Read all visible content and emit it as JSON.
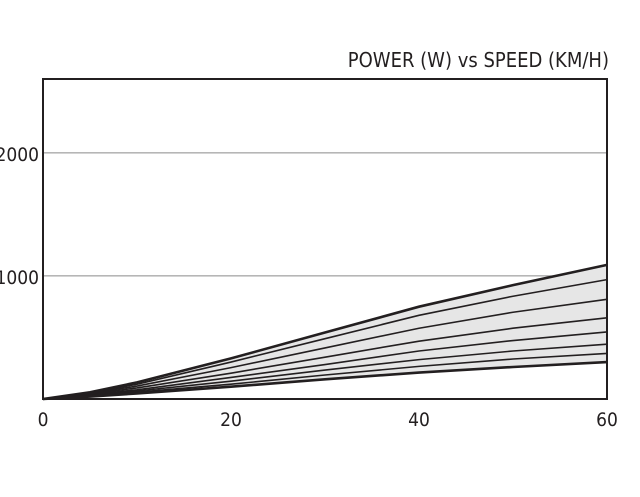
{
  "chart_data": {
    "type": "line",
    "title": "POWER (W) vs SPEED (KM/H)",
    "xlabel": "",
    "ylabel": "",
    "xlim": [
      0,
      60
    ],
    "ylim": [
      0,
      2600
    ],
    "xticks": [
      "0",
      "20",
      "40",
      "60"
    ],
    "yticks": [
      "1000",
      "2000"
    ],
    "grid": "horizontal",
    "fill_between_outer_series": true,
    "x": [
      0,
      5,
      10,
      20,
      30,
      40,
      50,
      60
    ],
    "series": [
      {
        "values": [
          0,
          55,
          135,
          330,
          540,
          750,
          925,
          1090
        ]
      },
      {
        "values": [
          0,
          50,
          120,
          300,
          490,
          680,
          835,
          970
        ]
      },
      {
        "values": [
          0,
          45,
          105,
          255,
          415,
          575,
          705,
          810
        ]
      },
      {
        "values": [
          0,
          40,
          90,
          210,
          340,
          470,
          575,
          660
        ]
      },
      {
        "values": [
          0,
          35,
          75,
          175,
          280,
          390,
          475,
          545
        ]
      },
      {
        "values": [
          0,
          30,
          65,
          145,
          235,
          320,
          390,
          445
        ]
      },
      {
        "values": [
          0,
          25,
          55,
          120,
          195,
          265,
          325,
          370
        ]
      },
      {
        "values": [
          0,
          20,
          45,
          100,
          160,
          215,
          260,
          300
        ]
      }
    ]
  }
}
